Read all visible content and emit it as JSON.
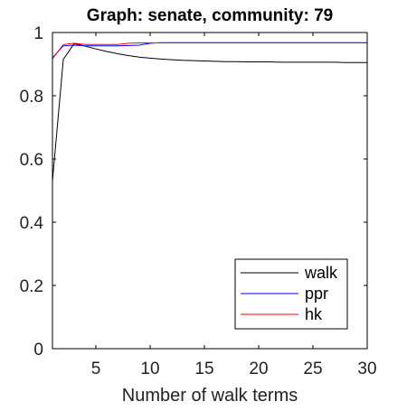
{
  "chart_data": {
    "type": "line",
    "title": "Graph: senate, community: 79",
    "xlabel": "Number of walk terms",
    "ylabel": "",
    "xlim": [
      1,
      30
    ],
    "ylim": [
      0,
      1
    ],
    "xticks": [
      5,
      10,
      15,
      20,
      25,
      30
    ],
    "yticks": [
      0,
      0.2,
      0.4,
      0.6,
      0.8,
      1
    ],
    "xtick_labels": [
      "5",
      "10",
      "15",
      "20",
      "25",
      "30"
    ],
    "ytick_labels": [
      "0",
      "0.2",
      "0.4",
      "0.6",
      "0.8",
      "1"
    ],
    "grid": false,
    "legend_position": "bottom-right",
    "series": [
      {
        "name": "walk",
        "color": "#000000",
        "x": [
          1,
          2,
          3,
          4,
          5,
          6,
          7,
          8,
          9,
          10,
          11,
          12,
          13,
          14,
          15,
          16,
          17,
          18,
          19,
          20,
          21,
          22,
          23,
          24,
          25,
          26,
          27,
          28,
          29,
          30
        ],
        "y": [
          0.53,
          0.915,
          0.965,
          0.957,
          0.948,
          0.94,
          0.933,
          0.927,
          0.922,
          0.919,
          0.916,
          0.914,
          0.912,
          0.911,
          0.91,
          0.909,
          0.908,
          0.908,
          0.907,
          0.907,
          0.907,
          0.906,
          0.906,
          0.906,
          0.906,
          0.906,
          0.906,
          0.905,
          0.905,
          0.905
        ]
      },
      {
        "name": "ppr",
        "color": "#0000ff",
        "x": [
          1,
          2,
          3,
          4,
          5,
          6,
          7,
          8,
          9,
          10,
          11,
          12,
          13,
          14,
          15,
          16,
          17,
          18,
          19,
          20,
          21,
          22,
          23,
          24,
          25,
          26,
          27,
          28,
          29,
          30
        ],
        "y": [
          0.92,
          0.958,
          0.96,
          0.958,
          0.958,
          0.958,
          0.958,
          0.959,
          0.96,
          0.966,
          0.968,
          0.968,
          0.968,
          0.968,
          0.968,
          0.968,
          0.968,
          0.968,
          0.968,
          0.968,
          0.968,
          0.968,
          0.968,
          0.968,
          0.968,
          0.968,
          0.968,
          0.968,
          0.968,
          0.968
        ]
      },
      {
        "name": "hk",
        "color": "#ff0000",
        "x": [
          1,
          2,
          3,
          4,
          5,
          6,
          7,
          8,
          9,
          10,
          11,
          12,
          13,
          14,
          15,
          16,
          17,
          18,
          19,
          20,
          21,
          22,
          23,
          24,
          25,
          26,
          27,
          28,
          29,
          30
        ],
        "y": [
          0.917,
          0.962,
          0.966,
          0.962,
          0.962,
          0.962,
          0.962,
          0.966,
          0.967,
          0.967,
          0.967,
          0.967,
          0.967,
          0.967,
          0.967,
          0.967,
          0.967,
          0.967,
          0.967,
          0.967,
          0.967,
          0.967,
          0.967,
          0.967,
          0.967,
          0.967,
          0.967,
          0.967,
          0.967,
          0.967
        ]
      }
    ]
  }
}
